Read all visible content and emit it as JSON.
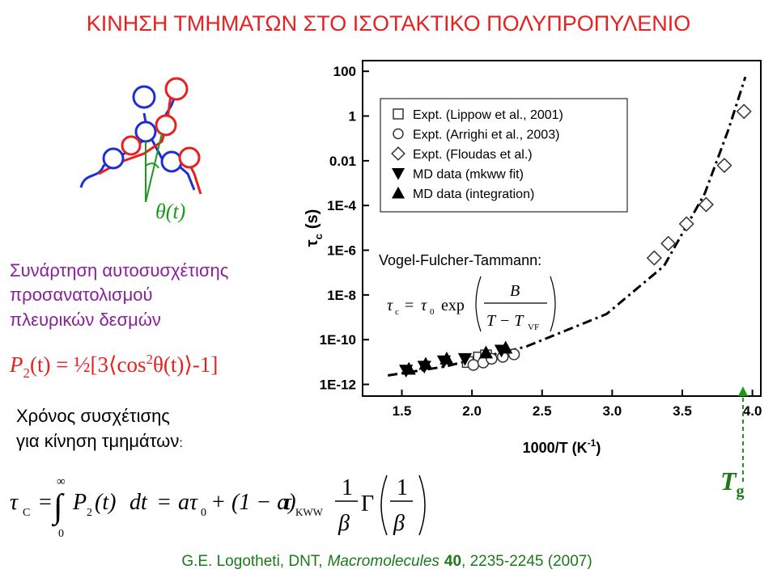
{
  "title": "ΚΙΝΗΣΗ ΤΜΗΜΑΤΩΝ ΣΤΟ ΙΣΟΤΑΚΤΙΚΟ ΠΟΛΥΠΡΟΠΥΛΕΝΙΟ",
  "diagram_label": "θ(t)",
  "description": [
    "Συνάρτηση αυτοσυσχέτισης",
    "προσανατολισμού",
    "πλευρικών δεσμών"
  ],
  "formulas": {
    "autocorrelation": [
      "P",
      "2",
      "(t) = ½[3⟨cos",
      "2",
      "θ(t)⟩-1]"
    ],
    "correlation_time_label": [
      "Χρόνος συσχέτισης",
      "για κίνηση τμημάτων",
      ":"
    ],
    "correlation_time": [
      "τ",
      "C",
      "=",
      "∫",
      "∞",
      "0",
      "P",
      "2",
      "(t)",
      "dt",
      "=",
      "aτ",
      "0",
      "+",
      "(1 − a)",
      "τ",
      "KWW",
      "1",
      "β",
      "Γ",
      "1",
      "β"
    ],
    "vft": [
      "τ",
      "c",
      "=",
      "τ",
      "0",
      "exp",
      "B",
      "T − T",
      "VF"
    ]
  },
  "tg_label": [
    "T",
    "g"
  ],
  "citation": [
    "G.E. Logotheti, DNT,",
    "Macromolecules",
    "40",
    ", 2235-2245 (2007)"
  ],
  "chart_data": {
    "type": "scatter",
    "xlabel": [
      "1000/T (K",
      "-1",
      ")"
    ],
    "ylabel": [
      "τ",
      "c",
      "(s)"
    ],
    "annotation": "Vogel-Fulcher-Tammann:",
    "xlim": [
      1.22,
      4.06
    ],
    "ylim": [
      3e-13,
      300
    ],
    "ylog": true,
    "grid": false,
    "legend": "upper left",
    "xticks": [
      1.5,
      {
        "value": 2,
        "label": "2.0"
      },
      2.5,
      {
        "value": 3,
        "label": "3.0"
      },
      3.5,
      {
        "value": 4,
        "label": "4.0"
      }
    ],
    "yticks": [
      {
        "value": 1e-12,
        "label": "1E-12"
      },
      {
        "value": 1e-10,
        "label": "1E-10"
      },
      {
        "value": 1e-08,
        "label": "1E-8"
      },
      {
        "value": 1e-06,
        "label": "1E-6"
      },
      {
        "value": 0.0001,
        "label": "1E-4"
      },
      0.01,
      1,
      100
    ],
    "series": [
      {
        "name": "Expt. (Lippow et al., 2001)",
        "marker": "square",
        "color": "#333333",
        "x": [
          1.97,
          2.05,
          2.1
        ],
        "values": [
          1e-11,
          1.6e-11,
          2e-11
        ]
      },
      {
        "name": "Expt. (Arrighi et al., 2003)",
        "marker": "circle",
        "color": "#333333",
        "x": [
          2.01,
          2.08,
          2.14,
          2.22,
          2.3
        ],
        "values": [
          7.4e-12,
          9.5e-12,
          1.4e-11,
          1.7e-11,
          2.2e-11
        ]
      },
      {
        "name": "Expt. (Floudas et al.)",
        "marker": "diamond",
        "color": "#333333",
        "x": [
          3.3,
          3.4,
          3.53,
          3.67,
          3.8,
          3.94
        ],
        "values": [
          4.5e-07,
          2e-06,
          1.5e-05,
          0.00011,
          0.0062,
          1.6
        ]
      },
      {
        "name": "MD data (mkww fit)",
        "marker": "triangle-down",
        "color": "#000000",
        "x": [
          1.53,
          1.66,
          1.8,
          1.95,
          2.21
        ],
        "values": [
          4.2e-12,
          6.3e-12,
          1.1e-11,
          1.4e-11,
          3.3e-11
        ]
      },
      {
        "name": "MD data (integration)",
        "marker": "triangle-up",
        "color": "#000000",
        "x": [
          1.55,
          1.67,
          1.82,
          2.1,
          2.24
        ],
        "values": [
          4.9e-12,
          8.1e-12,
          1.4e-11,
          2.6e-11,
          4.3e-11
        ]
      }
    ],
    "fit": {
      "color": "#000000",
      "x": [
        1.4,
        1.81,
        2.39,
        2.96,
        3.37,
        3.66,
        3.83,
        3.95
      ],
      "values": [
        2.5e-12,
        6.3e-12,
        5e-11,
        1.4e-09,
        2e-07,
        0.00034,
        0.26,
        56
      ]
    }
  }
}
